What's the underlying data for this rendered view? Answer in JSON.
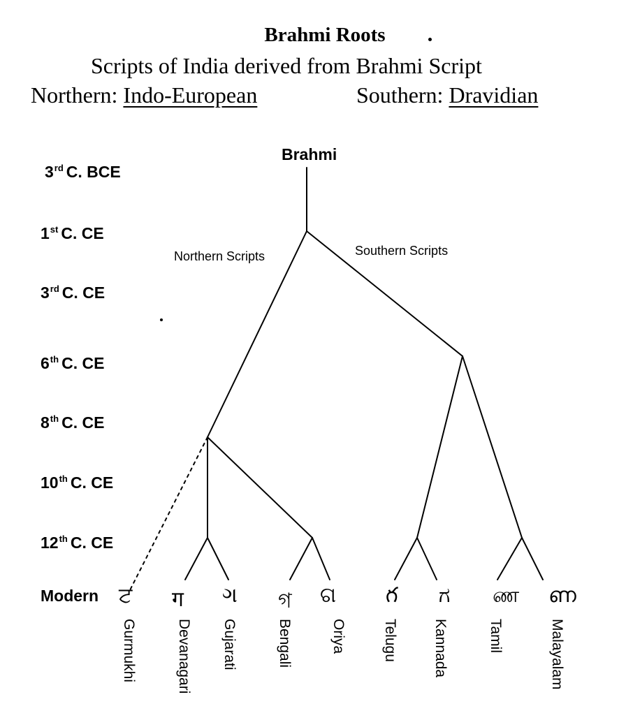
{
  "title": "Brahmi Roots",
  "subtitle": "Scripts of India derived from Brahmi Script",
  "north_heading": {
    "prefix": "Northern: ",
    "family": "Indo-European"
  },
  "south_heading": {
    "prefix": "Southern: ",
    "family": "Dravidian"
  },
  "timeline": [
    {
      "num": "3",
      "sup": "rd",
      "rest": "C. BCE"
    },
    {
      "num": "1",
      "sup": "st",
      "rest": "C. CE"
    },
    {
      "num": "3",
      "sup": "rd",
      "rest": "C. CE"
    },
    {
      "num": "6",
      "sup": "th",
      "rest": "C. CE"
    },
    {
      "num": "8",
      "sup": "th",
      "rest": "C. CE"
    },
    {
      "num": "10",
      "sup": "th",
      "rest": "C. CE"
    },
    {
      "num": "12",
      "sup": "th",
      "rest": "C. CE"
    },
    {
      "num": "",
      "sup": "",
      "rest": "Modern"
    }
  ],
  "root": "Brahmi",
  "branches": {
    "northern": "Northern Scripts",
    "southern": "Southern Scripts"
  },
  "scripts": [
    {
      "name": "Gurmukhi",
      "glyph": "ਟ"
    },
    {
      "name": "Devanagari",
      "glyph": "ग"
    },
    {
      "name": "Gujarati",
      "glyph": "ગ"
    },
    {
      "name": "Bengali",
      "glyph": "গ"
    },
    {
      "name": "Oriya",
      "glyph": "ଗ"
    },
    {
      "name": "Telugu",
      "glyph": "గ"
    },
    {
      "name": "Kannada",
      "glyph": "ಗ"
    },
    {
      "name": "Tamil",
      "glyph": "ண"
    },
    {
      "name": "Malayalam",
      "glyph": "ണ"
    }
  ]
}
